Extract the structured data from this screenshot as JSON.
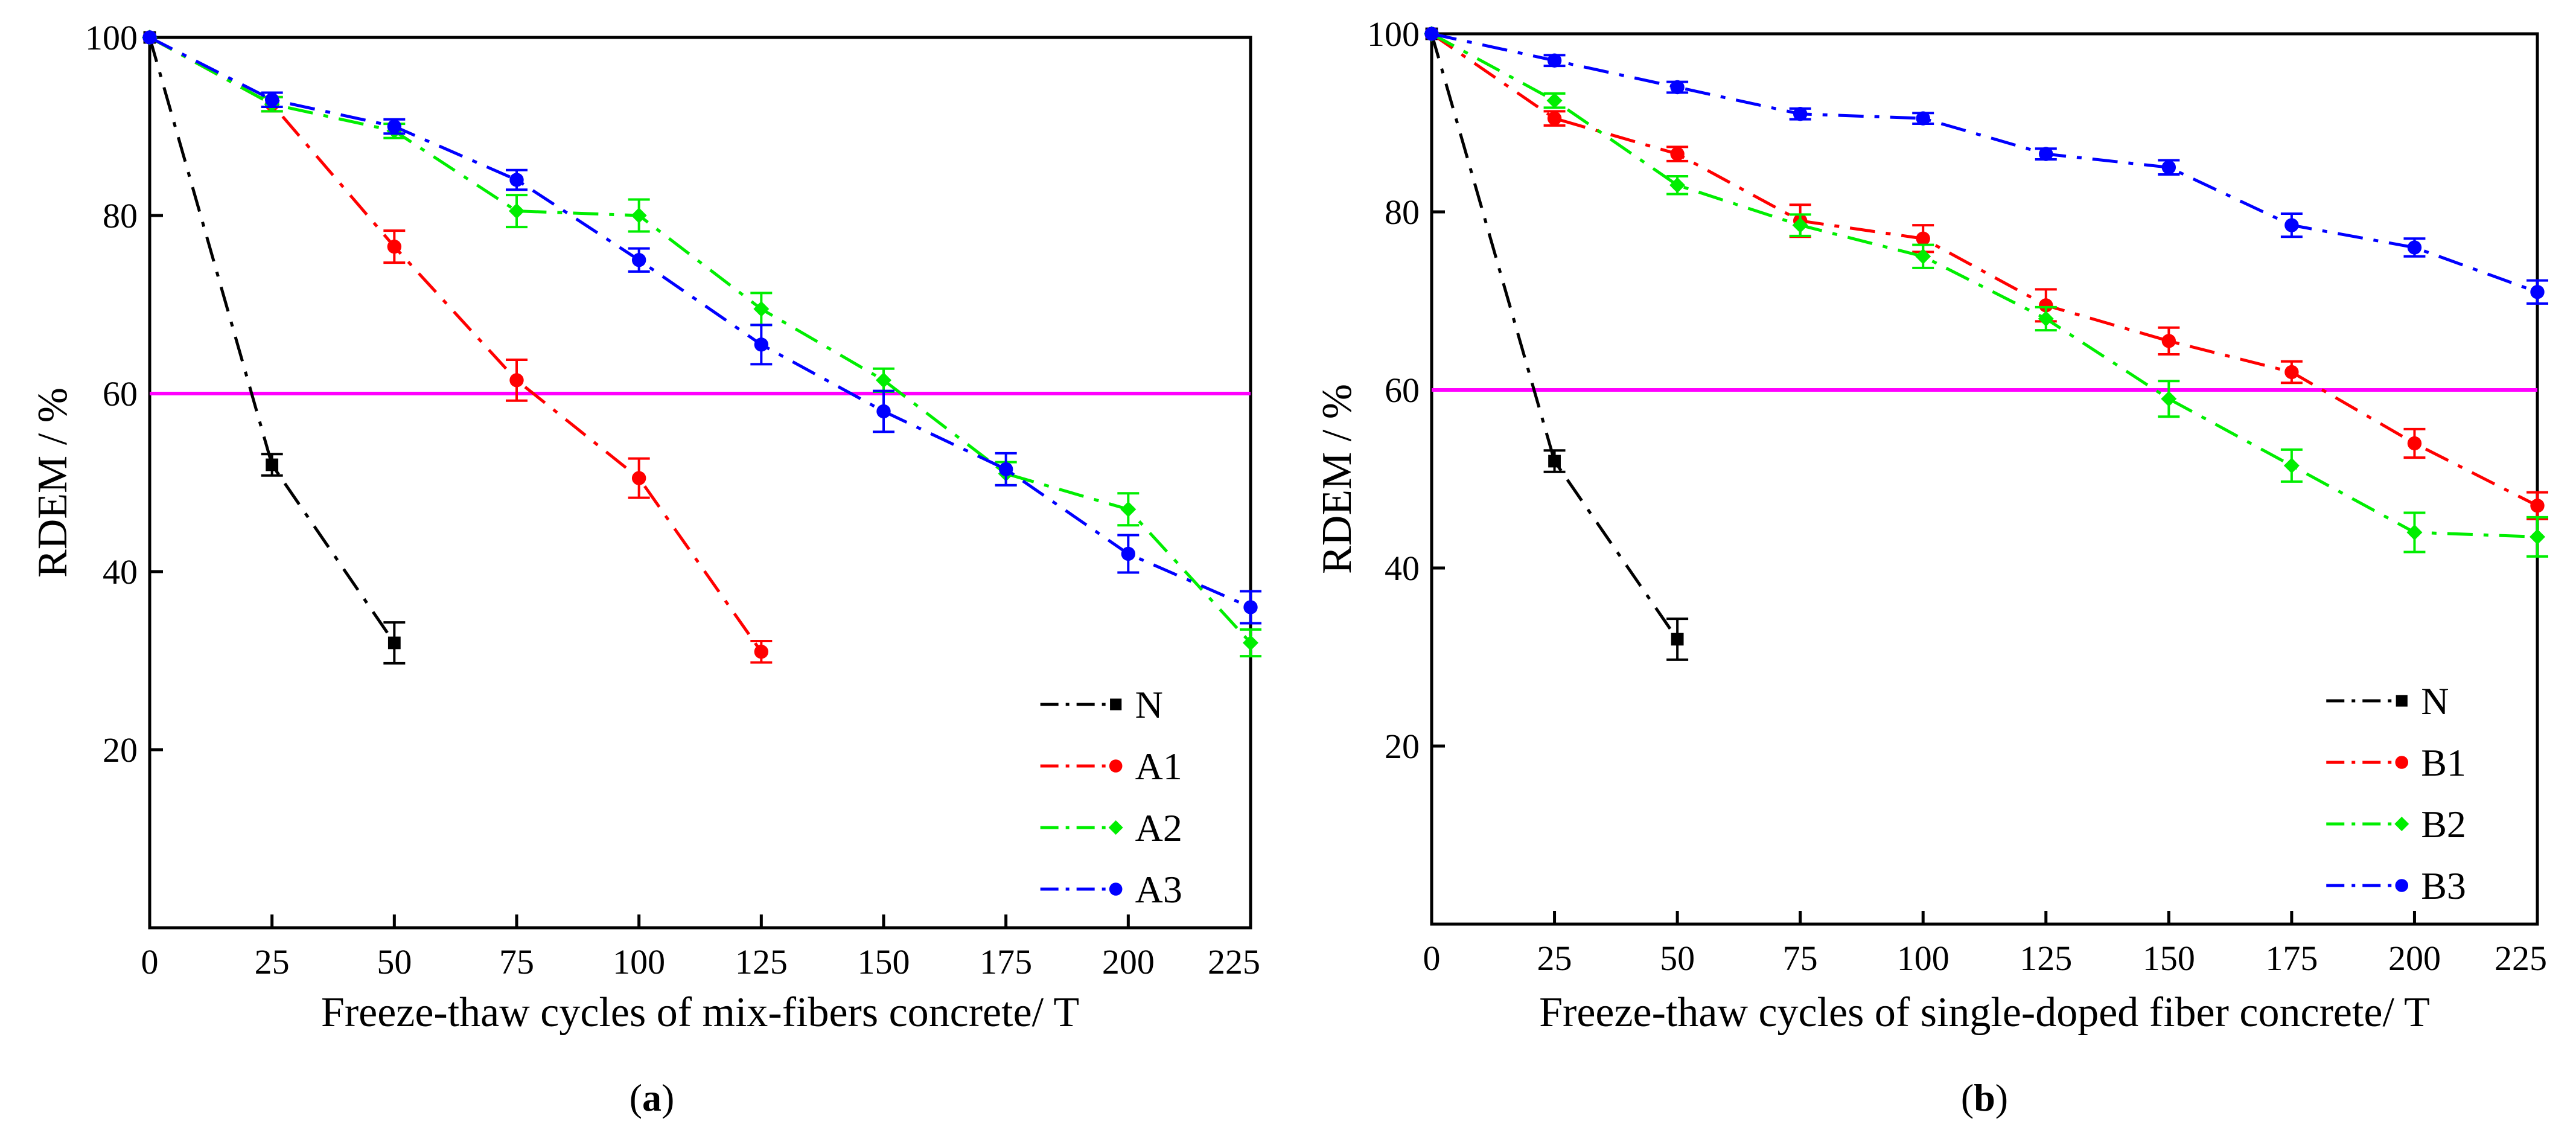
{
  "chart_data": [
    {
      "type": "line",
      "caption": "(a)",
      "caption_letter": "a",
      "xlabel": "Freeze-thaw cycles of mix-fibers concrete/ T",
      "ylabel": "RDEM / %",
      "xlim": [
        0,
        225
      ],
      "ylim": [
        0,
        100
      ],
      "xticks": [
        0,
        25,
        50,
        75,
        100,
        125,
        150,
        175,
        200,
        225
      ],
      "yticks": [
        20,
        40,
        60,
        80,
        100
      ],
      "reference_line": {
        "y": 60,
        "color": "#ff00ff"
      },
      "legend_position": "bottom-right",
      "series": [
        {
          "name": "N",
          "color": "#000000",
          "marker": "square",
          "x": [
            0,
            25,
            50
          ],
          "y": [
            100,
            52,
            32
          ],
          "err": [
            0,
            1.2,
            2.3
          ]
        },
        {
          "name": "A1",
          "color": "#ff0000",
          "marker": "circle",
          "x": [
            0,
            25,
            50,
            75,
            100,
            125
          ],
          "y": [
            100,
            92.5,
            76.5,
            61.5,
            50.5,
            31
          ],
          "err": [
            0,
            0.8,
            1.8,
            2.3,
            2.2,
            1.2
          ]
        },
        {
          "name": "A2",
          "color": "#00ee00",
          "marker": "diamond",
          "x": [
            0,
            25,
            50,
            75,
            100,
            125,
            150,
            175,
            200,
            225
          ],
          "y": [
            100,
            92.5,
            89.5,
            80.5,
            80,
            69.5,
            61.5,
            51,
            47,
            32
          ],
          "err": [
            0,
            0.8,
            0.8,
            1.8,
            1.8,
            1.8,
            1.3,
            1.3,
            1.8,
            1.5
          ]
        },
        {
          "name": "A3",
          "color": "#0000ff",
          "marker": "circle",
          "x": [
            0,
            25,
            50,
            75,
            100,
            125,
            150,
            175,
            200,
            225
          ],
          "y": [
            100,
            93,
            90,
            84,
            75,
            65.5,
            58,
            51.5,
            42,
            36
          ],
          "err": [
            0,
            0.8,
            0.8,
            1.1,
            1.3,
            2.2,
            2.3,
            1.8,
            2.1,
            1.8
          ]
        }
      ]
    },
    {
      "type": "line",
      "caption": "(b)",
      "caption_letter": "b",
      "xlabel": "Freeze-thaw cycles of single-doped fiber concrete/ T",
      "ylabel": "RDEM / %",
      "xlim": [
        0,
        225
      ],
      "ylim": [
        0,
        100
      ],
      "xticks": [
        0,
        25,
        50,
        75,
        100,
        125,
        150,
        175,
        200,
        225
      ],
      "yticks": [
        20,
        40,
        60,
        80,
        100
      ],
      "reference_line": {
        "y": 60,
        "color": "#ff00ff"
      },
      "legend_position": "bottom-right",
      "series": [
        {
          "name": "N",
          "color": "#000000",
          "marker": "square",
          "x": [
            0,
            25,
            50
          ],
          "y": [
            100,
            52,
            32
          ],
          "err": [
            0,
            1.2,
            2.3
          ]
        },
        {
          "name": "B1",
          "color": "#ff0000",
          "marker": "circle",
          "x": [
            0,
            25,
            50,
            75,
            100,
            125,
            150,
            175,
            200,
            225
          ],
          "y": [
            100,
            90.5,
            86.5,
            79,
            77,
            69.5,
            65.5,
            62,
            54,
            47
          ],
          "err": [
            0,
            0.8,
            0.8,
            1.8,
            1.5,
            1.8,
            1.5,
            1.2,
            1.6,
            1.5
          ]
        },
        {
          "name": "B2",
          "color": "#00ee00",
          "marker": "diamond",
          "x": [
            0,
            25,
            50,
            75,
            100,
            125,
            150,
            175,
            200,
            225
          ],
          "y": [
            100,
            92.5,
            83,
            78.5,
            75,
            68,
            59,
            51.5,
            44,
            43.5
          ],
          "err": [
            0,
            0.8,
            1,
            1.2,
            1.3,
            1.3,
            2,
            1.8,
            2.2,
            2.2
          ]
        },
        {
          "name": "B3",
          "color": "#0000ff",
          "marker": "circle",
          "x": [
            0,
            25,
            50,
            75,
            100,
            125,
            150,
            175,
            200,
            225
          ],
          "y": [
            100,
            97,
            94,
            91,
            90.5,
            86.5,
            85,
            78.5,
            76,
            71
          ],
          "err": [
            0,
            0.6,
            0.6,
            0.6,
            0.6,
            0.6,
            0.8,
            1.3,
            1,
            1.3
          ]
        }
      ]
    }
  ]
}
